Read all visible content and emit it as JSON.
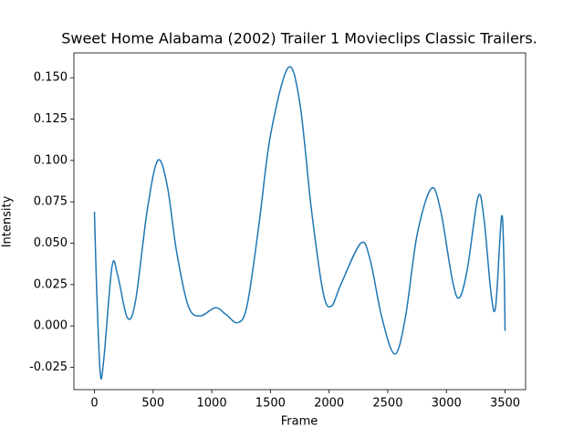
{
  "chart_data": {
    "type": "line",
    "title": "Sweet Home Alabama (2002) Trailer 1  Movieclips Classic Trailers.",
    "x_label": "Frame",
    "y_label": "Intensity",
    "x": [
      0,
      20,
      50,
      80,
      150,
      200,
      280,
      350,
      450,
      540,
      620,
      700,
      800,
      900,
      1030,
      1120,
      1220,
      1300,
      1400,
      1500,
      1650,
      1750,
      1850,
      1950,
      2020,
      2100,
      2270,
      2350,
      2450,
      2560,
      2650,
      2750,
      2870,
      2950,
      3050,
      3110,
      3180,
      3270,
      3320,
      3380,
      3420,
      3470,
      3490,
      3500
    ],
    "series": [
      {
        "name": "Intensity",
        "color": "#1f77b4",
        "values": [
          0.069,
          0.02,
          -0.029,
          -0.02,
          0.036,
          0.03,
          0.005,
          0.015,
          0.07,
          0.1,
          0.085,
          0.045,
          0.012,
          0.006,
          0.011,
          0.007,
          0.002,
          0.012,
          0.06,
          0.115,
          0.156,
          0.135,
          0.07,
          0.02,
          0.012,
          0.025,
          0.05,
          0.04,
          0.005,
          -0.017,
          0.005,
          0.055,
          0.083,
          0.07,
          0.028,
          0.017,
          0.035,
          0.078,
          0.065,
          0.02,
          0.012,
          0.066,
          0.04,
          -0.003
        ]
      }
    ],
    "xlim": [
      -175,
      3675
    ],
    "ylim": [
      -0.0385,
      0.165
    ],
    "xticks": [
      0,
      500,
      1000,
      1500,
      2000,
      2500,
      3000,
      3500
    ],
    "yticks": [
      -0.025,
      {
        "value": 0,
        "label": "0.000"
      },
      0.025,
      {
        "value": 0.05,
        "label": "0.050"
      },
      0.075,
      {
        "value": 0.1,
        "label": "0.100"
      },
      0.125,
      {
        "value": 0.15,
        "label": "0.150"
      }
    ]
  }
}
